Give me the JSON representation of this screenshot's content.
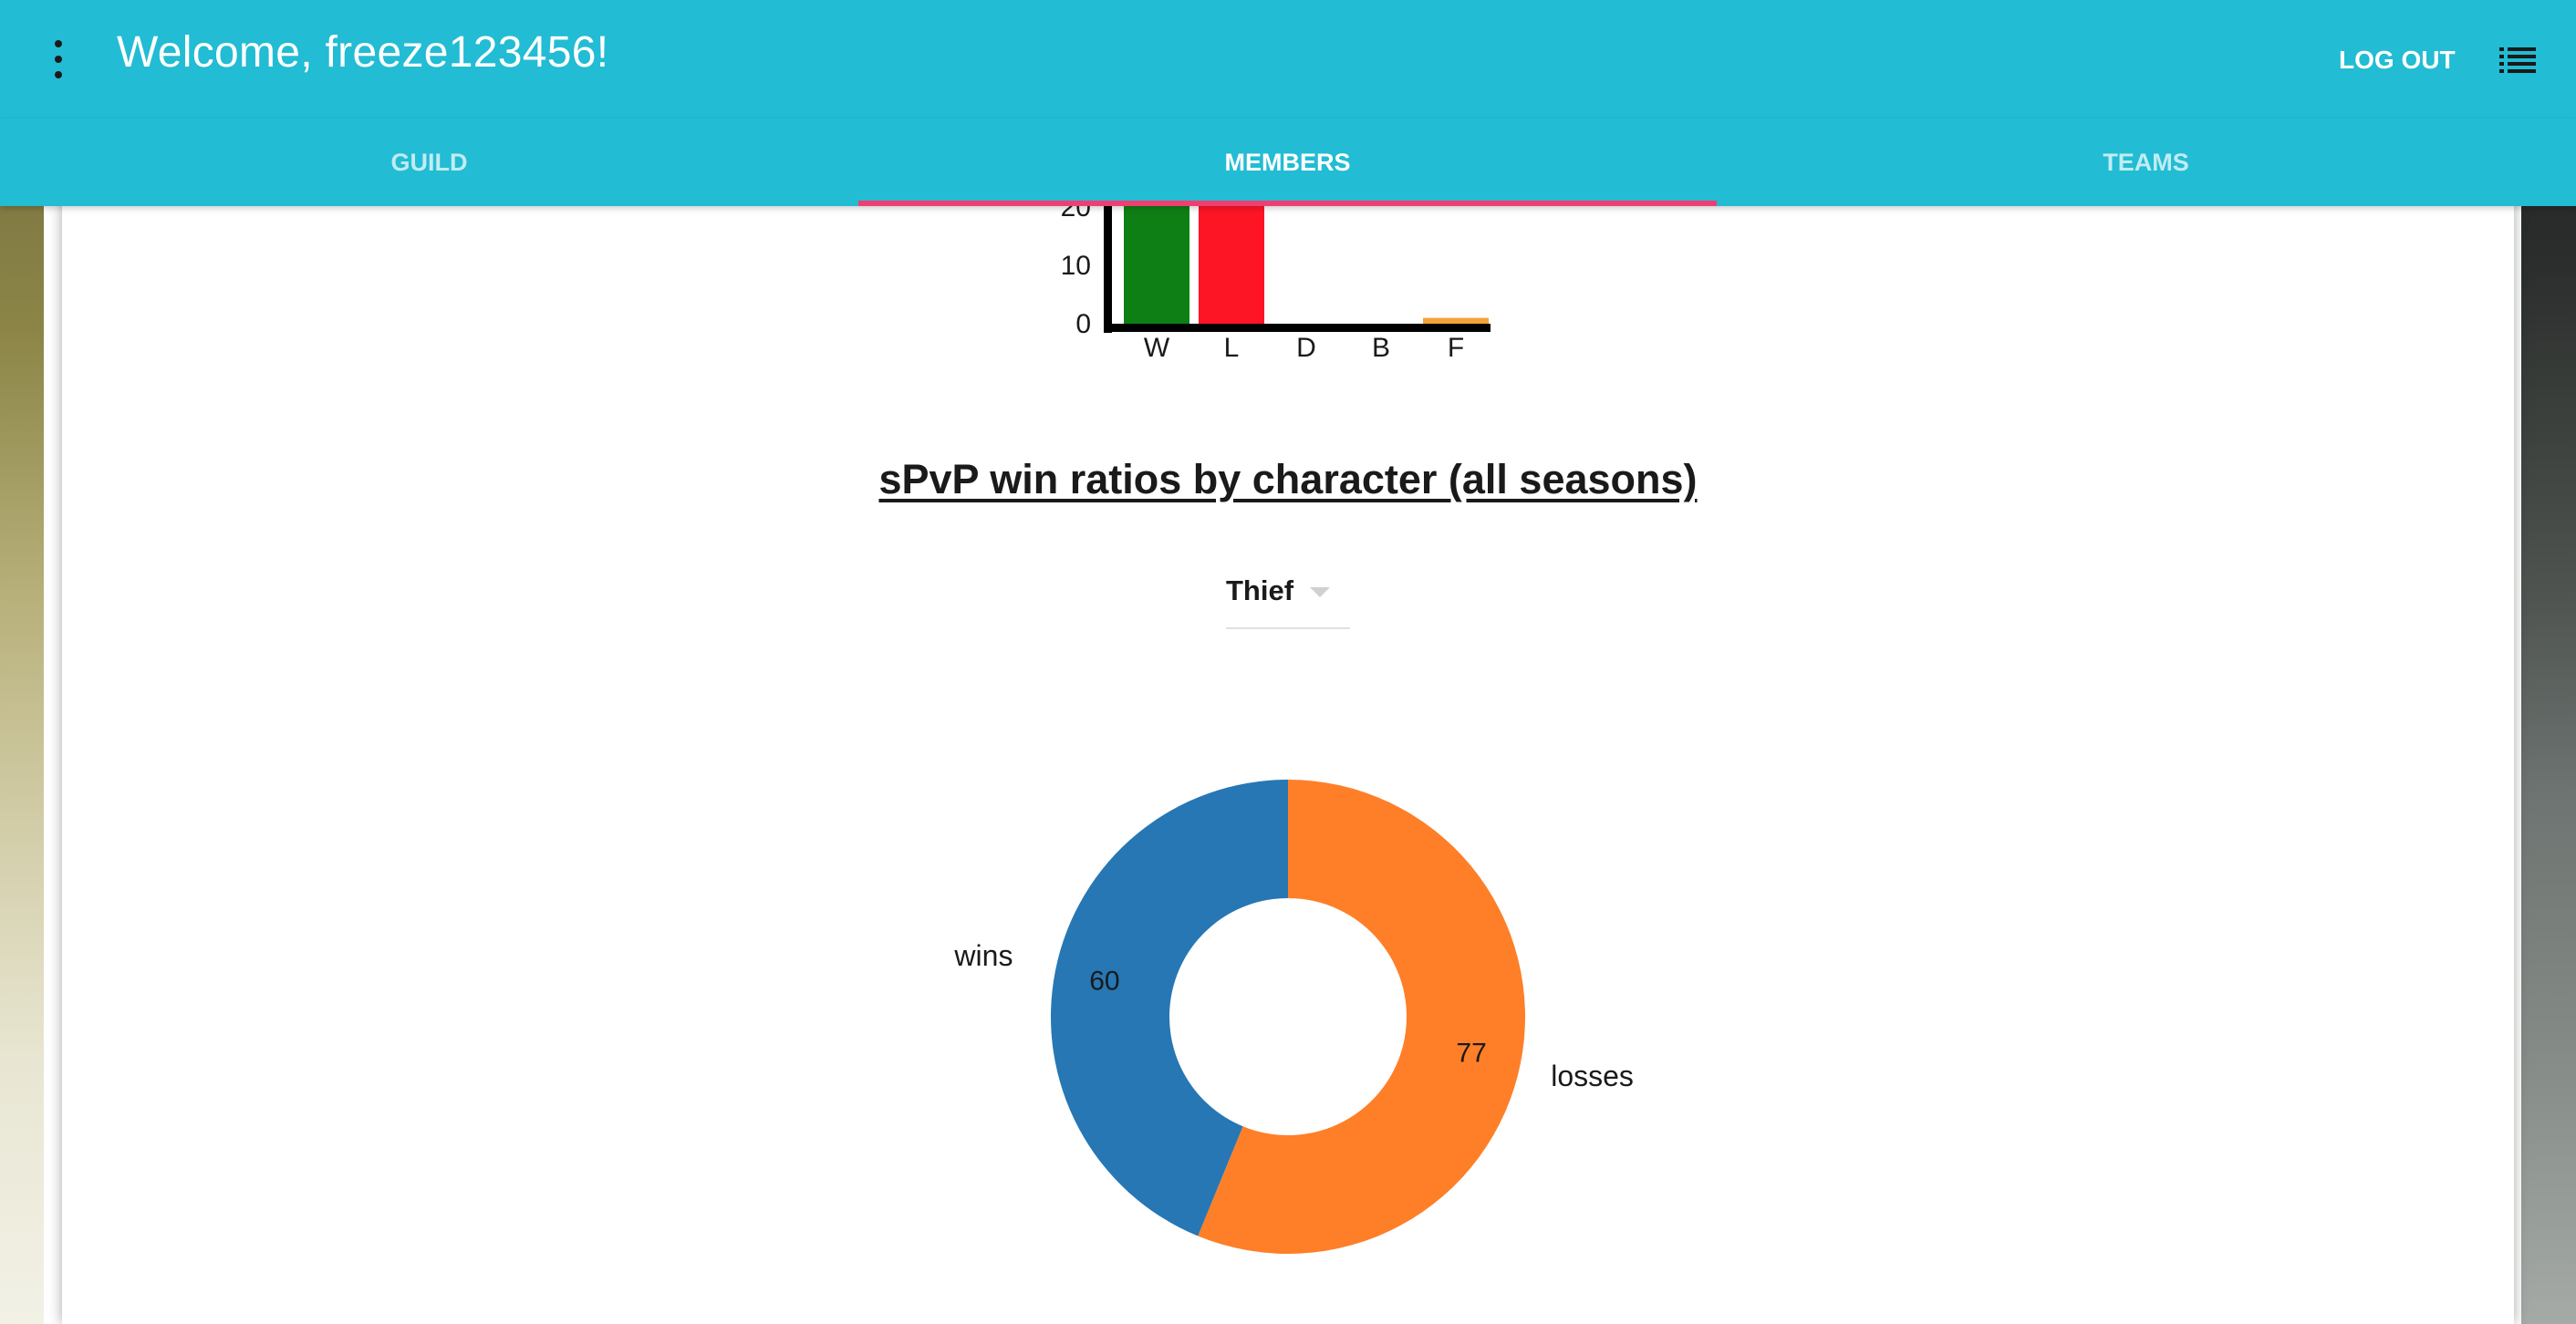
{
  "header": {
    "welcome_text": "Welcome, freeze123456!",
    "logout_label": "LOG OUT",
    "menu_icon": "more-vertical-icon",
    "list_icon": "list-icon"
  },
  "tabs": [
    {
      "label": "GUILD",
      "active": false
    },
    {
      "label": "MEMBERS",
      "active": true
    },
    {
      "label": "TEAMS",
      "active": false
    }
  ],
  "colors": {
    "primary": "#22bcd4",
    "tab_indicator": "#ef3f72",
    "wins": "#2677b4",
    "losses": "#fe7f28"
  },
  "chart_data": [
    {
      "type": "bar",
      "categories": [
        "W",
        "L",
        "D",
        "B",
        "F"
      ],
      "values": [
        null,
        null,
        0,
        0,
        1
      ],
      "yticks": [
        0,
        10,
        20
      ],
      "bar_colors": [
        "#0e7f14",
        "#fe1525",
        "#000000",
        "#000000",
        "#f2a33b"
      ],
      "clipped_top": true
    },
    {
      "type": "pie",
      "variant": "donut",
      "title": "sPvP win ratios by character (all seasons)",
      "labels": [
        "wins",
        "losses"
      ],
      "values": [
        60,
        77
      ],
      "colors": [
        "#2677b4",
        "#fe7f28"
      ]
    }
  ],
  "selector": {
    "selected": "Thief"
  }
}
